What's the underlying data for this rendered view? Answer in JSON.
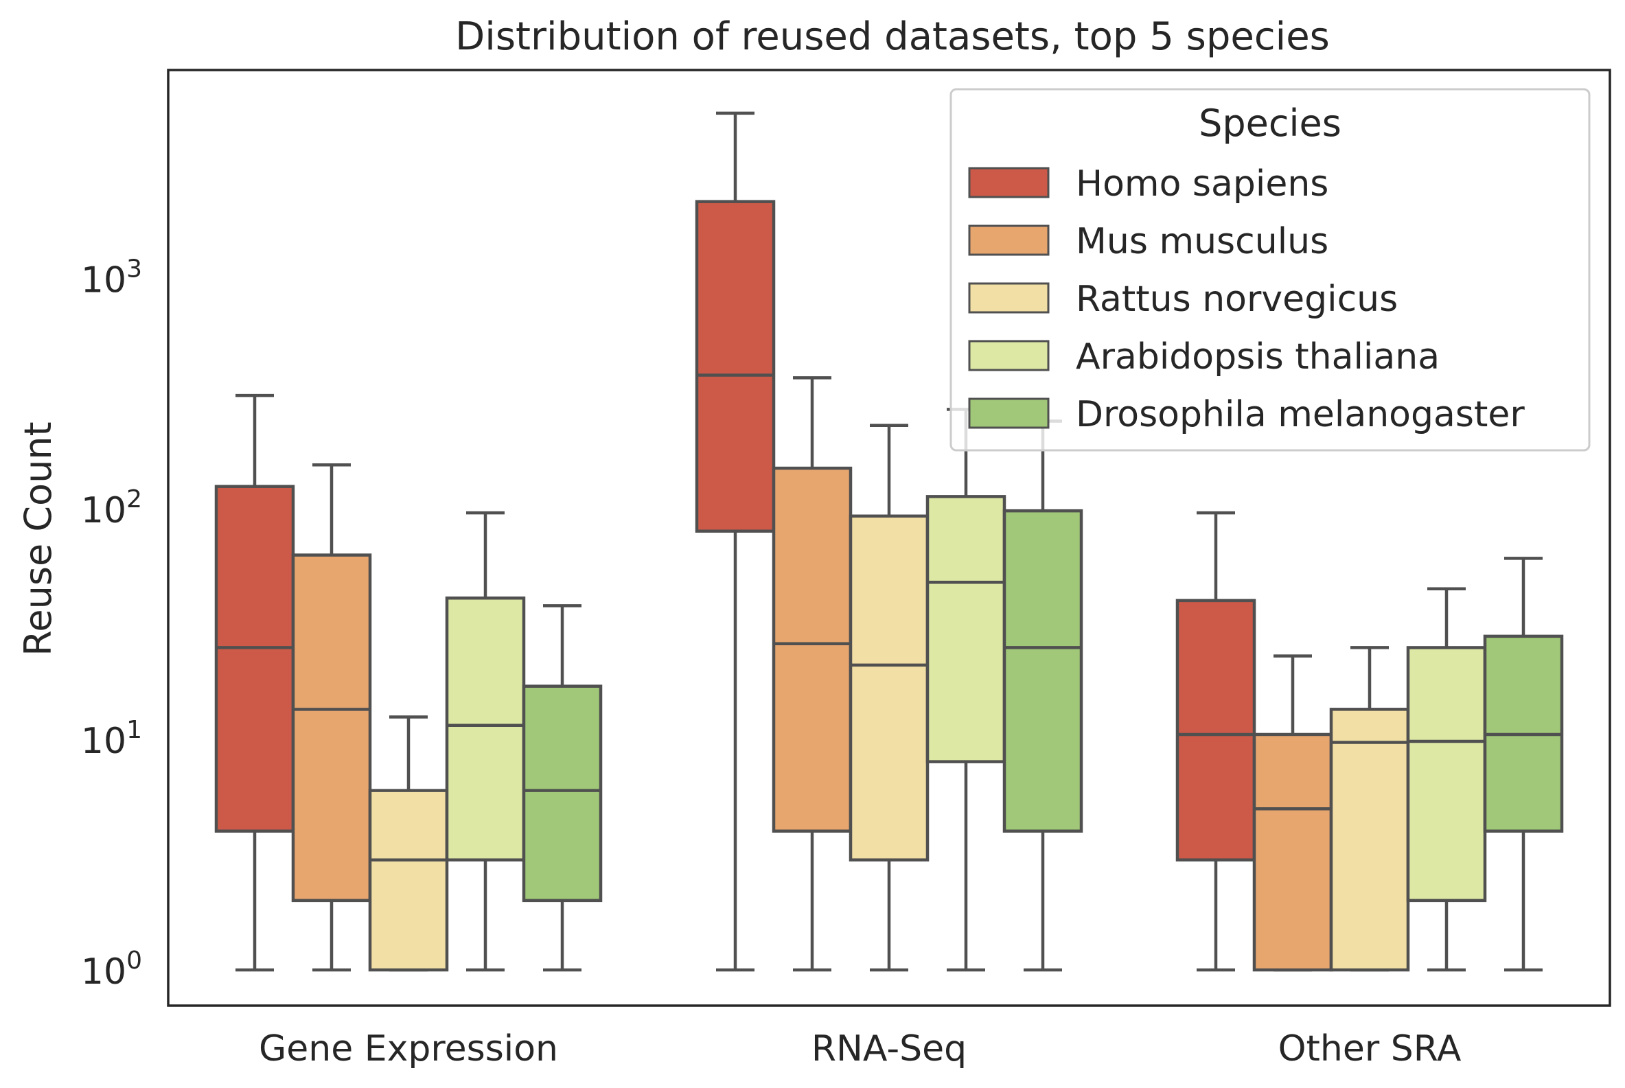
{
  "chart_data": {
    "type": "box",
    "title": "Distribution of reused datasets, top 5 species",
    "xlabel": "",
    "ylabel": "Reuse Count",
    "yscale": "log",
    "ylim": [
      0.7,
      8000
    ],
    "yticks": [
      {
        "value": 1,
        "base": "10",
        "exp": "0"
      },
      {
        "value": 10,
        "base": "10",
        "exp": "1"
      },
      {
        "value": 100,
        "base": "10",
        "exp": "2"
      },
      {
        "value": 1000,
        "base": "10",
        "exp": "3"
      }
    ],
    "categories": [
      "Gene Expression",
      "RNA-Seq",
      "Other SRA"
    ],
    "grid": false,
    "legend": {
      "title": "Species",
      "placement": "top-right"
    },
    "series": [
      {
        "name": "Homo sapiens",
        "color": "#cd5a48",
        "boxes": [
          {
            "whislo": 1,
            "q1": 4,
            "med": 25,
            "q3": 125,
            "whishi": 310
          },
          {
            "whislo": 1,
            "q1": 80,
            "med": 380,
            "q3": 2150,
            "whishi": 5200
          },
          {
            "whislo": 1,
            "q1": 3,
            "med": 10.5,
            "q3": 40,
            "whishi": 96
          }
        ]
      },
      {
        "name": "Mus musculus",
        "color": "#e8a66f",
        "boxes": [
          {
            "whislo": 1,
            "q1": 2,
            "med": 13.5,
            "q3": 63,
            "whishi": 155
          },
          {
            "whislo": 1,
            "q1": 4,
            "med": 26,
            "q3": 150,
            "whishi": 370
          },
          {
            "whislo": 1,
            "q1": 1,
            "med": 5,
            "q3": 10.5,
            "whishi": 23
          }
        ]
      },
      {
        "name": "Rattus norvegicus",
        "color": "#f2dfa5",
        "boxes": [
          {
            "whislo": 1,
            "q1": 1,
            "med": 3,
            "q3": 6,
            "whishi": 12.5
          },
          {
            "whislo": 1,
            "q1": 3,
            "med": 21,
            "q3": 93,
            "whishi": 230
          },
          {
            "whislo": 1,
            "q1": 1,
            "med": 9.7,
            "q3": 13.5,
            "whishi": 25
          }
        ]
      },
      {
        "name": "Arabidopsis thaliana",
        "color": "#dce8a4",
        "boxes": [
          {
            "whislo": 1,
            "q1": 3,
            "med": 11.5,
            "q3": 41,
            "whishi": 96
          },
          {
            "whislo": 1,
            "q1": 8,
            "med": 48,
            "q3": 113,
            "whishi": 270
          },
          {
            "whislo": 1,
            "q1": 2,
            "med": 9.8,
            "q3": 25,
            "whishi": 45
          }
        ]
      },
      {
        "name": "Drosophila melanogaster",
        "color": "#a0c878",
        "boxes": [
          {
            "whislo": 1,
            "q1": 2,
            "med": 6,
            "q3": 17,
            "whishi": 38
          },
          {
            "whislo": 1,
            "q1": 4,
            "med": 25,
            "q3": 98,
            "whishi": 240
          },
          {
            "whislo": 1,
            "q1": 4,
            "med": 10.5,
            "q3": 28,
            "whishi": 61
          }
        ]
      }
    ]
  }
}
